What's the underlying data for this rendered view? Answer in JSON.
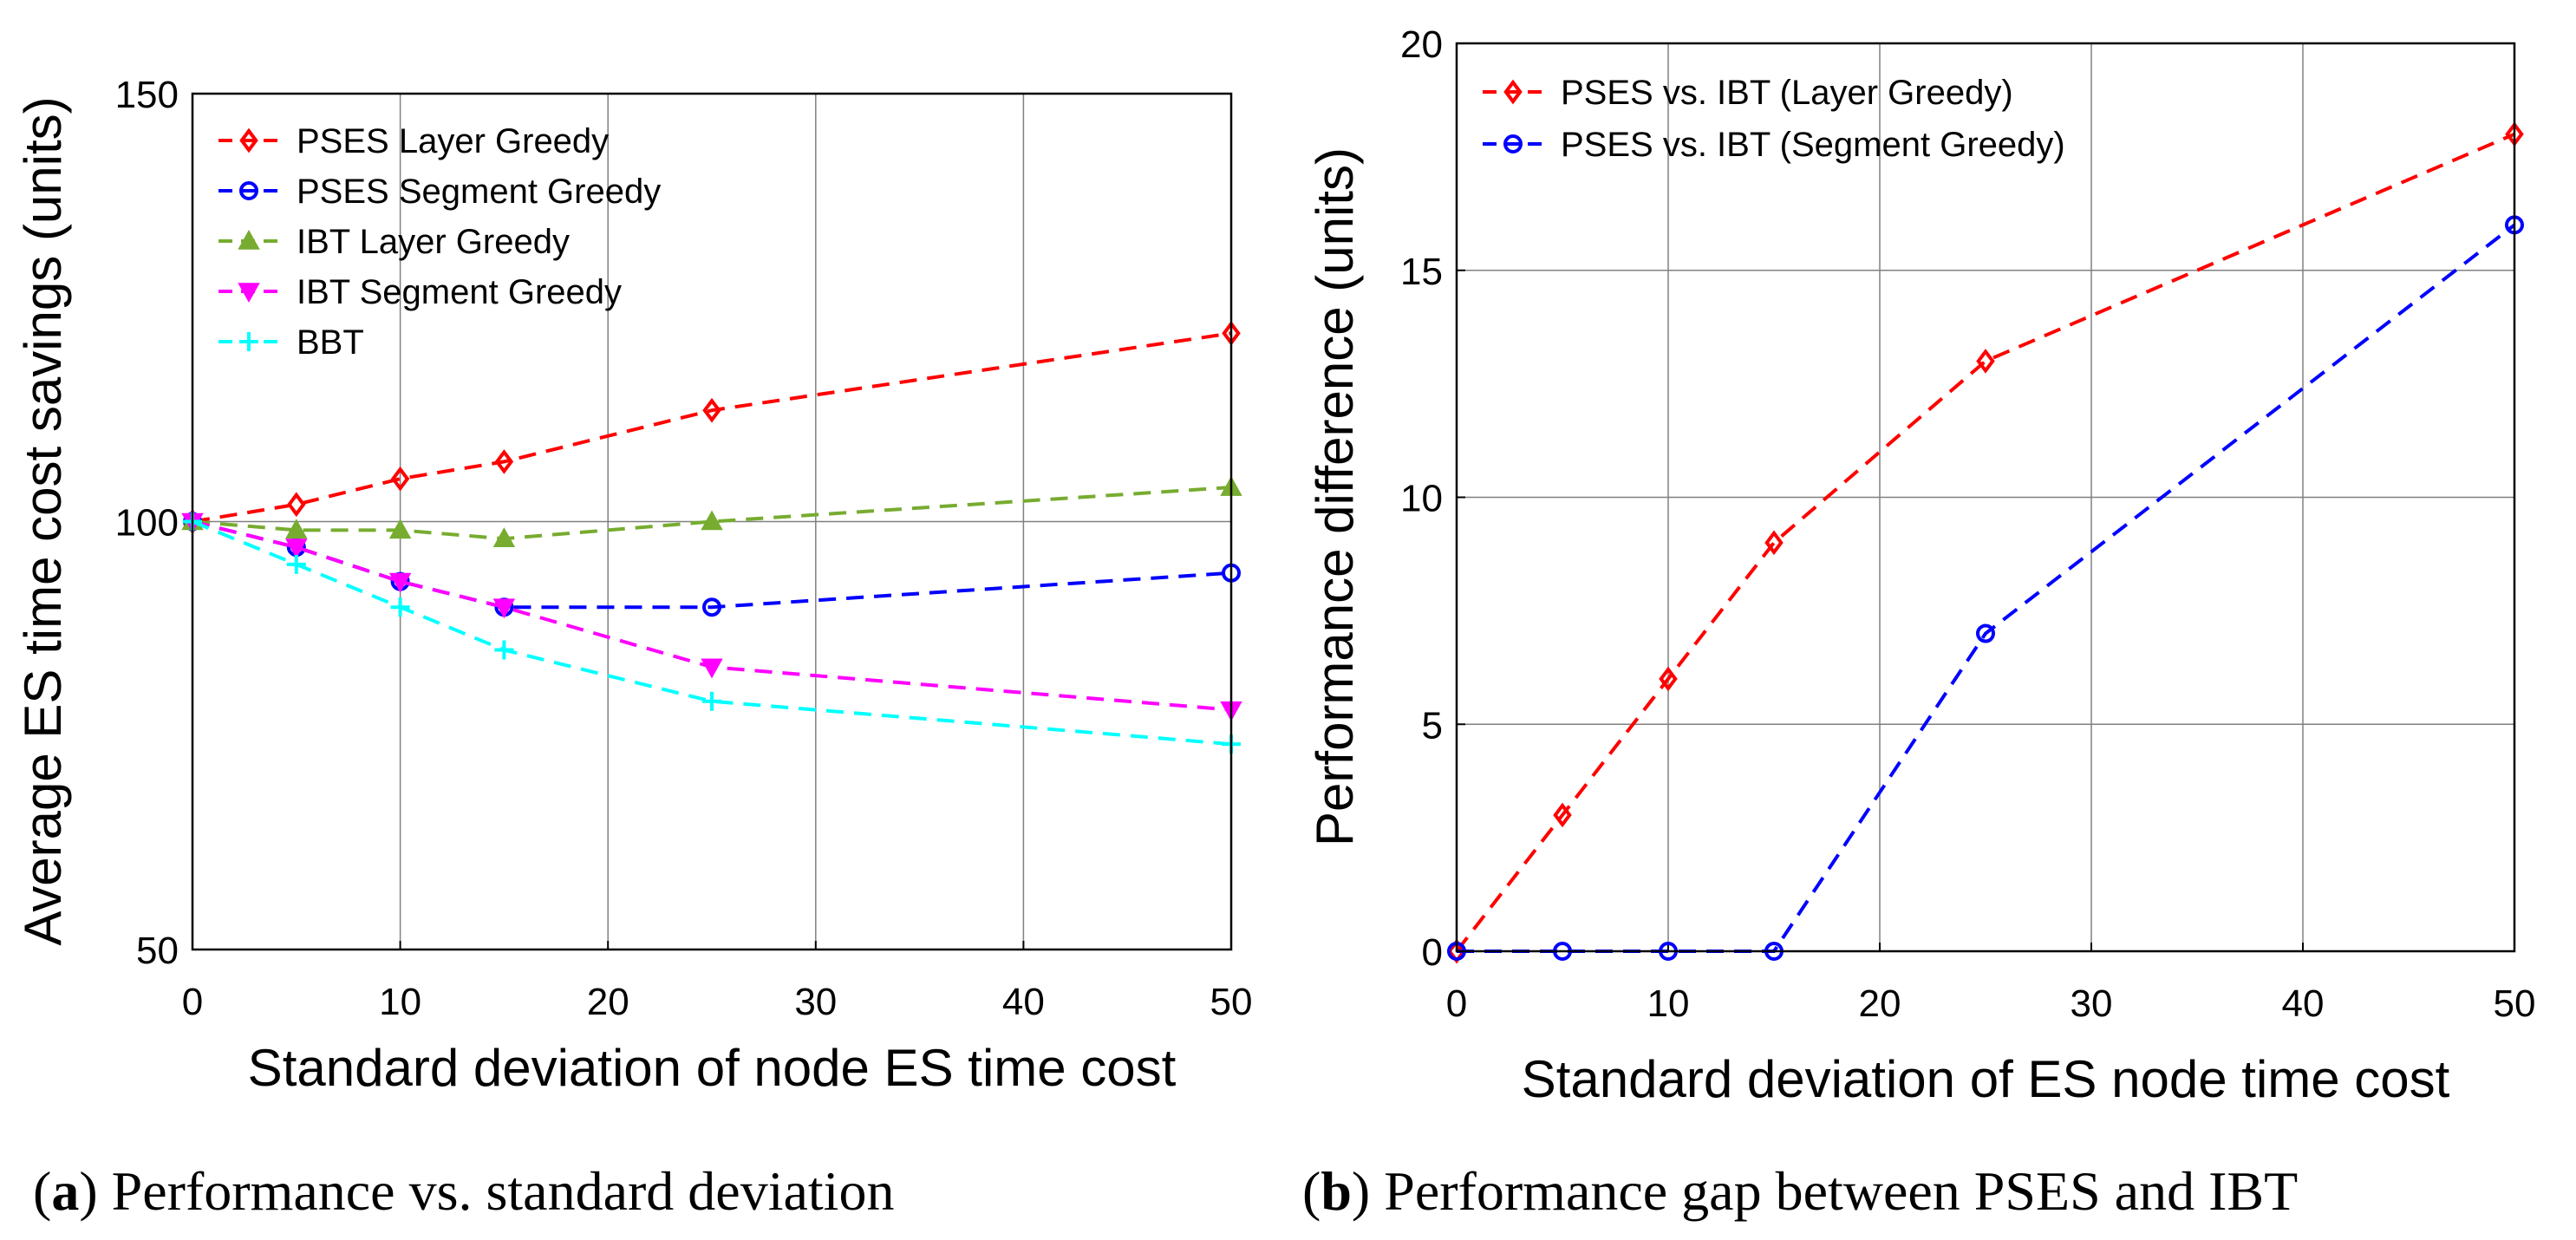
{
  "chart_data": [
    {
      "type": "line",
      "xlabel": "Standard deviation of node ES time cost",
      "ylabel": "Average ES time cost savings (units)",
      "xlim": [
        0,
        50
      ],
      "ylim": [
        50,
        150
      ],
      "xticks": [
        0,
        10,
        20,
        30,
        40,
        50
      ],
      "yticks": [
        50,
        100,
        150
      ],
      "grid": true,
      "legend_position": "top-left",
      "caption_letter": "a",
      "caption_rest": ") Performance vs. standard deviation",
      "series": [
        {
          "name": "PSES Layer Greedy",
          "color": "#ff0000",
          "marker": "diamond",
          "x": [
            0,
            5,
            10,
            15,
            25,
            50
          ],
          "values": [
            100,
            102,
            105,
            107,
            113,
            122
          ]
        },
        {
          "name": "PSES Segment Greedy",
          "color": "#0000ff",
          "marker": "circle",
          "x": [
            0,
            5,
            10,
            15,
            25,
            50
          ],
          "values": [
            100,
            97,
            93,
            90,
            90,
            94
          ]
        },
        {
          "name": "IBT Layer Greedy",
          "color": "#77ac30",
          "marker": "triangle-up",
          "x": [
            0,
            5,
            10,
            15,
            25,
            50
          ],
          "values": [
            100,
            99,
            99,
            98,
            100,
            104
          ]
        },
        {
          "name": "IBT Segment Greedy",
          "color": "#ff00ff",
          "marker": "triangle-down",
          "x": [
            0,
            5,
            10,
            15,
            25,
            50
          ],
          "values": [
            100,
            97,
            93,
            90,
            83,
            78
          ]
        },
        {
          "name": "BBT",
          "color": "#00ffff",
          "marker": "plus",
          "x": [
            0,
            5,
            10,
            15,
            25,
            50
          ],
          "values": [
            100,
            95,
            90,
            85,
            79,
            74
          ]
        }
      ]
    },
    {
      "type": "line",
      "xlabel": "Standard deviation of ES node time cost",
      "ylabel": "Performance difference (units)",
      "xlim": [
        0,
        50
      ],
      "ylim": [
        0,
        20
      ],
      "xticks": [
        0,
        10,
        20,
        30,
        40,
        50
      ],
      "yticks": [
        0,
        5,
        10,
        15,
        20
      ],
      "grid": true,
      "legend_position": "top-left",
      "caption_letter": "b",
      "caption_rest": ") Performance gap between PSES and IBT",
      "series": [
        {
          "name": "PSES vs. IBT (Layer Greedy)",
          "color": "#ff0000",
          "marker": "diamond",
          "x": [
            0,
            5,
            10,
            15,
            25,
            50
          ],
          "values": [
            0,
            3,
            6,
            9,
            13,
            18
          ]
        },
        {
          "name": "PSES vs. IBT (Segment Greedy)",
          "color": "#0000ff",
          "marker": "circle",
          "x": [
            0,
            5,
            10,
            15,
            25,
            50
          ],
          "values": [
            0,
            0,
            0,
            0,
            7,
            16
          ]
        }
      ]
    }
  ]
}
